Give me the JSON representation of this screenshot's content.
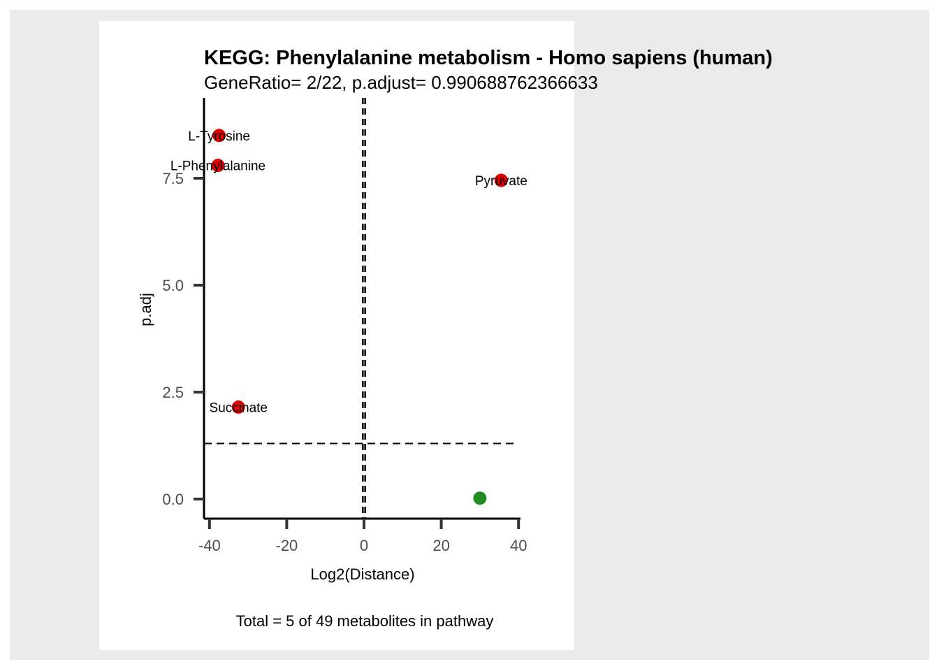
{
  "chart_data": {
    "type": "scatter",
    "title": "KEGG: Phenylalanine metabolism - Homo sapiens (human)",
    "subtitle": "GeneRatio= 2/22, p.adjust= 0.990688762366633",
    "xlabel": "Log2(Distance)",
    "ylabel": "p.adj",
    "caption": "Total = 5 of 49 metabolites in pathway",
    "xlim": [
      -41,
      41
    ],
    "ylim": [
      -0.9,
      9.3
    ],
    "xticks": [
      -40,
      -20,
      0,
      20,
      40
    ],
    "xtick_labels": [
      "-40",
      "-20",
      "0",
      "20",
      "40"
    ],
    "yticks": [
      0,
      2.5,
      5,
      7.5
    ],
    "ytick_labels": [
      "0.0",
      "2.5",
      "5.0",
      "7.5"
    ],
    "vlines": [
      -0.3,
      0.3
    ],
    "hline": 1.3,
    "grid": false,
    "points": [
      {
        "x": -37.5,
        "y": 8.5,
        "label": "L-Tyrosine",
        "color": "#e00000"
      },
      {
        "x": -37.8,
        "y": 7.8,
        "label": "L-Phenylalanine",
        "color": "#e00000"
      },
      {
        "x": 35.5,
        "y": 7.45,
        "label": "Pyruvate",
        "color": "#e00000"
      },
      {
        "x": -32.5,
        "y": 2.15,
        "label": "Succinate",
        "color": "#e00000"
      },
      {
        "x": 30,
        "y": 0.02,
        "label": "",
        "color": "#228b22"
      }
    ]
  }
}
